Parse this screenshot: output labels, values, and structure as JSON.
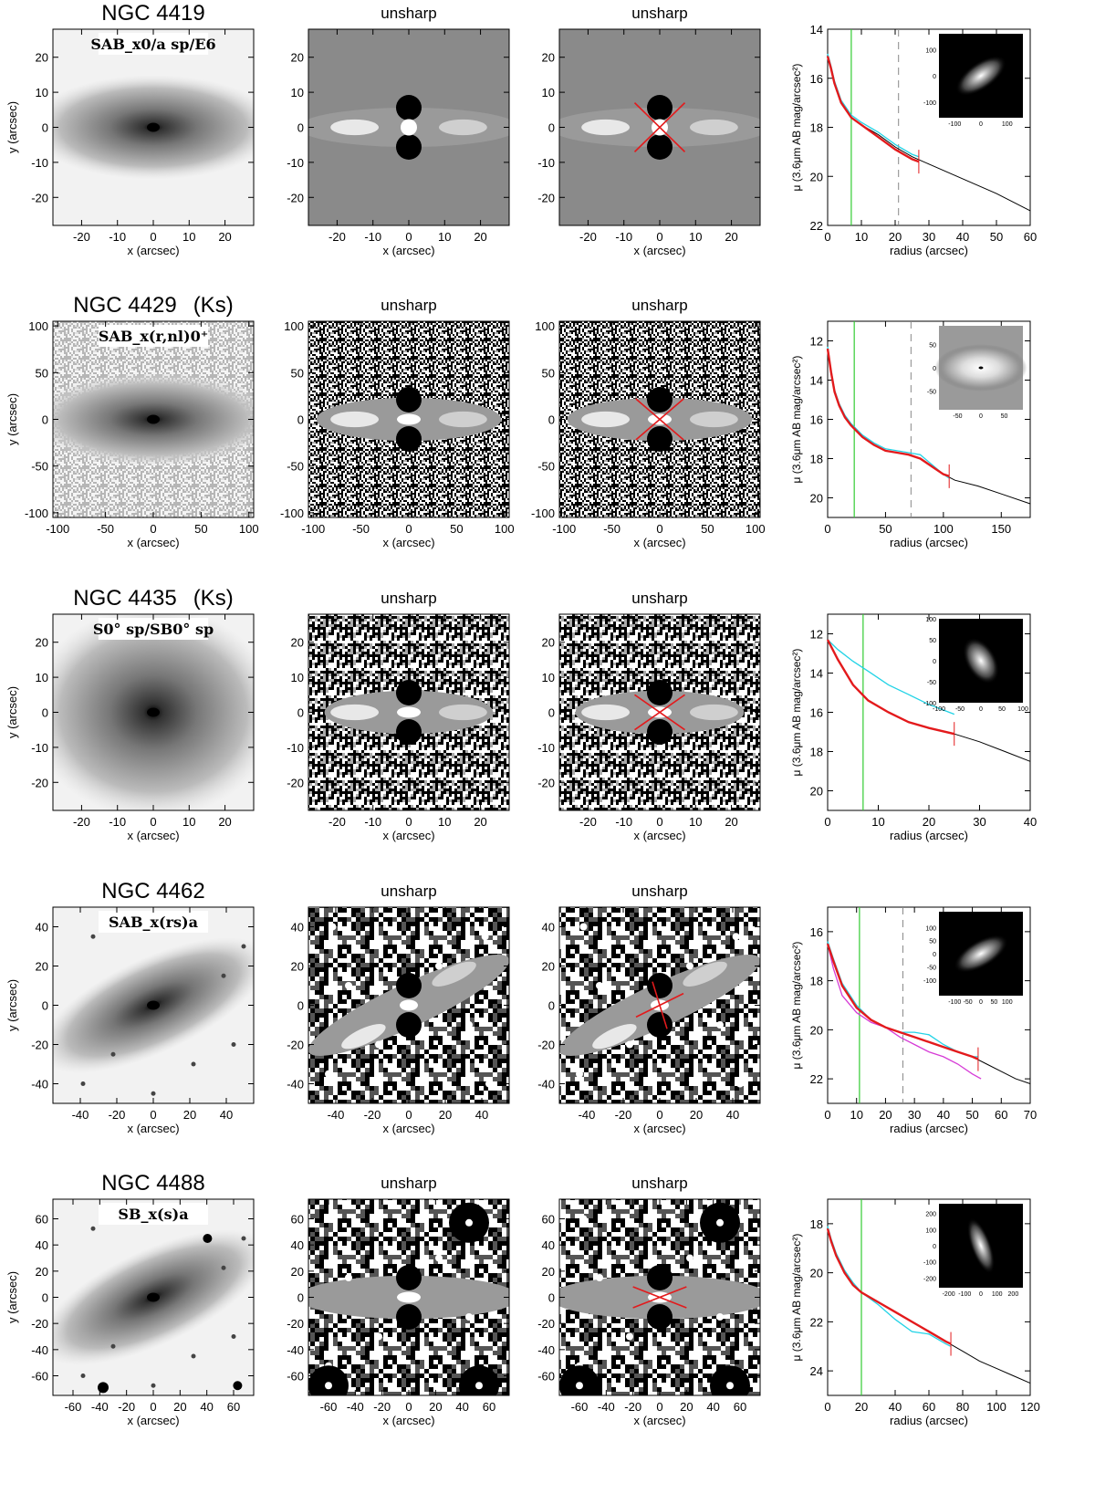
{
  "figure": {
    "panel_title_unsharp": "unsharp",
    "x_label": "x (arcsec)",
    "y_label": "y (arcsec)",
    "profile_x_label": "radius (arcsec)",
    "profile_y_label": "μ (3.6μm AB mag/arcsec²)",
    "colors": {
      "red_profile": "#e31a1c",
      "cyan_profile": "#22d3e6",
      "magenta_profile": "#d63bd6",
      "green_line": "#33cc33",
      "black_profile": "#000000",
      "x_overlay": "#e31a1c",
      "dashed_line": "#888888"
    }
  },
  "chart_data": [
    {
      "type": "line",
      "galaxy": "NGC 4419",
      "band": "",
      "classification": "SAB_x0/a sp/E6",
      "image_xlim": [
        -28,
        28
      ],
      "image_ylim": [
        -28,
        28
      ],
      "image_ticks": [
        -20,
        -10,
        0,
        10,
        20
      ],
      "inset_range": [
        -160,
        160
      ],
      "inset_ticks": [
        -100,
        0,
        100
      ],
      "inset_pa": -35,
      "inset_axes": [
        0.35,
        0.16
      ],
      "unsharp_blob": "round",
      "x_arms": [
        [
          -7,
          -7,
          7,
          7
        ],
        [
          -7,
          7,
          7,
          -7
        ]
      ],
      "xlim": [
        0,
        60
      ],
      "ylim": [
        22,
        14
      ],
      "xticks": [
        0,
        10,
        20,
        30,
        40,
        50,
        60
      ],
      "yticks": [
        14,
        16,
        18,
        20,
        22
      ],
      "green_line_x": 7,
      "dashed_line_x": 21,
      "tick_mark_x": 27,
      "series": [
        {
          "color": "black",
          "x": [
            0,
            1,
            2,
            4,
            7,
            10,
            15,
            20,
            25,
            30,
            40,
            50,
            60
          ],
          "y": [
            15.1,
            15.6,
            16.2,
            17.0,
            17.6,
            17.9,
            18.3,
            18.8,
            19.2,
            19.5,
            20.1,
            20.7,
            21.4
          ]
        },
        {
          "color": "red",
          "x": [
            0,
            1,
            2,
            4,
            7,
            10,
            15,
            20,
            25,
            27
          ],
          "y": [
            15.1,
            15.6,
            16.2,
            17.0,
            17.6,
            17.9,
            18.4,
            18.9,
            19.3,
            19.4
          ]
        },
        {
          "color": "cyan",
          "x": [
            0,
            1,
            2,
            4,
            7,
            10,
            15,
            20,
            25,
            27
          ],
          "y": [
            15.0,
            15.5,
            16.1,
            16.9,
            17.5,
            17.8,
            18.2,
            18.7,
            19.1,
            19.2
          ]
        }
      ]
    },
    {
      "type": "line",
      "galaxy": "NGC 4429",
      "band": "(Ks)",
      "classification": "SAB_x(r,nl)0⁺",
      "image_xlim": [
        -105,
        105
      ],
      "image_ylim": [
        -105,
        105
      ],
      "image_ticks": [
        -100,
        -50,
        0,
        50,
        100
      ],
      "inset_range": [
        -90,
        90
      ],
      "inset_ticks": [
        -50,
        0,
        50
      ],
      "inset_pa": 0,
      "inset_axes": [
        0.42,
        0.16
      ],
      "unsharp_blob": "bar",
      "x_arms": [
        [
          -25,
          -22,
          25,
          22
        ],
        [
          -25,
          22,
          25,
          -22
        ]
      ],
      "xlim": [
        0,
        175
      ],
      "ylim": [
        21,
        11
      ],
      "xticks": [
        0,
        50,
        100,
        150
      ],
      "yticks": [
        12,
        14,
        16,
        18,
        20
      ],
      "green_line_x": 23,
      "dashed_line_x": 72,
      "tick_mark_x": 105,
      "series": [
        {
          "color": "black",
          "x": [
            0,
            3,
            6,
            10,
            15,
            20,
            30,
            40,
            50,
            60,
            70,
            80,
            90,
            100,
            110,
            130,
            150,
            175
          ],
          "y": [
            12.4,
            13.6,
            14.6,
            15.3,
            15.9,
            16.3,
            16.9,
            17.3,
            17.6,
            17.7,
            17.8,
            18.0,
            18.4,
            18.8,
            19.1,
            19.4,
            19.8,
            20.3
          ]
        },
        {
          "color": "red",
          "x": [
            0,
            3,
            6,
            10,
            15,
            20,
            30,
            40,
            50,
            60,
            70,
            80,
            90,
            100,
            105
          ],
          "y": [
            12.4,
            13.6,
            14.6,
            15.3,
            15.9,
            16.3,
            16.9,
            17.3,
            17.6,
            17.7,
            17.8,
            18.0,
            18.4,
            18.8,
            18.9
          ]
        },
        {
          "color": "cyan",
          "x": [
            0,
            3,
            6,
            10,
            15,
            20,
            30,
            40,
            50,
            60,
            70,
            80,
            90,
            100,
            105
          ],
          "y": [
            12.3,
            13.5,
            14.5,
            15.2,
            15.8,
            16.2,
            16.8,
            17.2,
            17.5,
            17.6,
            17.7,
            17.8,
            18.3,
            18.8,
            19.0
          ]
        }
      ]
    },
    {
      "type": "line",
      "galaxy": "NGC 4435",
      "band": "(Ks)",
      "classification": "S0° sp/SB0° sp",
      "image_xlim": [
        -28,
        28
      ],
      "image_ylim": [
        -28,
        28
      ],
      "image_ticks": [
        -20,
        -10,
        0,
        10,
        20
      ],
      "inset_range": [
        -100,
        100
      ],
      "inset_ticks": [
        -100,
        -50,
        0,
        50,
        100
      ],
      "inset_pa": 60,
      "inset_axes": [
        0.3,
        0.18
      ],
      "unsharp_blob": "bar",
      "x_arms": [
        [
          -7,
          -5,
          7,
          5
        ],
        [
          -7,
          5,
          7,
          -5
        ]
      ],
      "xlim": [
        0,
        40
      ],
      "ylim": [
        21,
        11
      ],
      "xticks": [
        0,
        10,
        20,
        30,
        40
      ],
      "yticks": [
        12,
        14,
        16,
        18,
        20
      ],
      "green_line_x": 7,
      "dashed_line_x": null,
      "tick_mark_x": 25,
      "series": [
        {
          "color": "black",
          "x": [
            0,
            2,
            5,
            8,
            12,
            16,
            20,
            25,
            30,
            35,
            40
          ],
          "y": [
            12.3,
            13.3,
            14.6,
            15.4,
            16.0,
            16.5,
            16.8,
            17.1,
            17.5,
            18.0,
            18.5
          ]
        },
        {
          "color": "red",
          "x": [
            0,
            2,
            5,
            8,
            12,
            16,
            20,
            25
          ],
          "y": [
            12.3,
            13.3,
            14.6,
            15.4,
            16.0,
            16.5,
            16.8,
            17.1
          ]
        },
        {
          "color": "cyan",
          "x": [
            0,
            2,
            5,
            8,
            12,
            16,
            20,
            25
          ],
          "y": [
            12.3,
            12.8,
            13.4,
            13.9,
            14.6,
            15.1,
            15.6,
            16.1
          ]
        }
      ]
    },
    {
      "type": "line",
      "galaxy": "NGC 4462",
      "band": "",
      "classification": "SAB_x(rs)a",
      "image_xlim": [
        -55,
        55
      ],
      "image_ylim": [
        -50,
        50
      ],
      "image_ticks": [
        -40,
        -20,
        0,
        20,
        40
      ],
      "inset_range": [
        -160,
        160
      ],
      "inset_ticks": [
        -100,
        -50,
        0,
        50,
        100
      ],
      "inset_pa": -30,
      "inset_axes": [
        0.36,
        0.16
      ],
      "unsharp_blob": "pair",
      "x_arms": [
        [
          -13,
          -6,
          13,
          6
        ],
        [
          -4,
          12,
          4,
          -12
        ]
      ],
      "xlim": [
        0,
        70
      ],
      "ylim": [
        23,
        15
      ],
      "xticks": [
        0,
        10,
        20,
        30,
        40,
        50,
        60,
        70
      ],
      "yticks": [
        16,
        18,
        20,
        22
      ],
      "green_line_x": 11,
      "dashed_line_x": 26,
      "tick_mark_x": 52,
      "series": [
        {
          "color": "black",
          "x": [
            0,
            2,
            5,
            10,
            15,
            20,
            25,
            30,
            35,
            40,
            45,
            50,
            55,
            60,
            65,
            70
          ],
          "y": [
            16.5,
            17.2,
            18.2,
            19.1,
            19.6,
            19.9,
            20.1,
            20.3,
            20.5,
            20.7,
            20.9,
            21.1,
            21.4,
            21.7,
            22.0,
            22.2
          ]
        },
        {
          "color": "red",
          "x": [
            0,
            2,
            5,
            10,
            15,
            20,
            25,
            30,
            35,
            40,
            45,
            50,
            52
          ],
          "y": [
            16.5,
            17.2,
            18.2,
            19.1,
            19.6,
            19.9,
            20.1,
            20.3,
            20.5,
            20.7,
            20.9,
            21.1,
            21.2
          ]
        },
        {
          "color": "cyan",
          "x": [
            0,
            2,
            5,
            10,
            15,
            20,
            25,
            30,
            35,
            40,
            45,
            50,
            52
          ],
          "y": [
            16.4,
            17.1,
            18.1,
            19.0,
            19.6,
            19.9,
            20.1,
            20.1,
            20.2,
            20.6,
            20.9,
            21.1,
            21.1
          ]
        },
        {
          "color": "magenta",
          "x": [
            0,
            2,
            5,
            10,
            15,
            20,
            25,
            30,
            35,
            40,
            45,
            50,
            53
          ],
          "y": [
            16.5,
            17.5,
            18.6,
            19.3,
            19.7,
            19.9,
            20.3,
            20.6,
            20.9,
            21.1,
            21.4,
            21.8,
            22.0
          ]
        }
      ]
    },
    {
      "type": "line",
      "galaxy": "NGC 4488",
      "band": "",
      "classification": "SB_x(s)a",
      "image_xlim": [
        -75,
        75
      ],
      "image_ylim": [
        -75,
        75
      ],
      "image_ticks": [
        -60,
        -40,
        -20,
        0,
        20,
        40,
        60
      ],
      "inset_range": [
        -260,
        260
      ],
      "inset_ticks": [
        -200,
        -100,
        0,
        100,
        200
      ],
      "inset_pa": 70,
      "inset_axes": [
        0.35,
        0.12
      ],
      "unsharp_blob": "bar",
      "x_arms": [
        [
          -20,
          -8,
          20,
          8
        ],
        [
          -20,
          8,
          20,
          -8
        ]
      ],
      "xlim": [
        0,
        120
      ],
      "ylim": [
        25,
        17
      ],
      "xticks": [
        0,
        20,
        40,
        60,
        80,
        100,
        120
      ],
      "yticks": [
        18,
        20,
        22,
        24
      ],
      "green_line_x": 20,
      "dashed_line_x": null,
      "tick_mark_x": 73,
      "series": [
        {
          "color": "black",
          "x": [
            0,
            2,
            5,
            10,
            15,
            20,
            30,
            40,
            50,
            60,
            70,
            80,
            90,
            100,
            110,
            120
          ],
          "y": [
            18.2,
            18.7,
            19.3,
            20.0,
            20.5,
            20.8,
            21.2,
            21.6,
            22.0,
            22.4,
            22.8,
            23.2,
            23.6,
            23.9,
            24.2,
            24.5
          ]
        },
        {
          "color": "red",
          "x": [
            0,
            2,
            5,
            10,
            15,
            20,
            30,
            40,
            50,
            60,
            70,
            73
          ],
          "y": [
            18.2,
            18.7,
            19.3,
            20.0,
            20.5,
            20.8,
            21.2,
            21.6,
            22.0,
            22.4,
            22.8,
            22.9
          ]
        },
        {
          "color": "cyan",
          "x": [
            0,
            2,
            5,
            10,
            15,
            20,
            30,
            40,
            50,
            60,
            70,
            73
          ],
          "y": [
            18.1,
            18.6,
            19.2,
            19.9,
            20.4,
            20.8,
            21.3,
            21.9,
            22.4,
            22.5,
            22.9,
            23.0
          ]
        }
      ]
    }
  ]
}
